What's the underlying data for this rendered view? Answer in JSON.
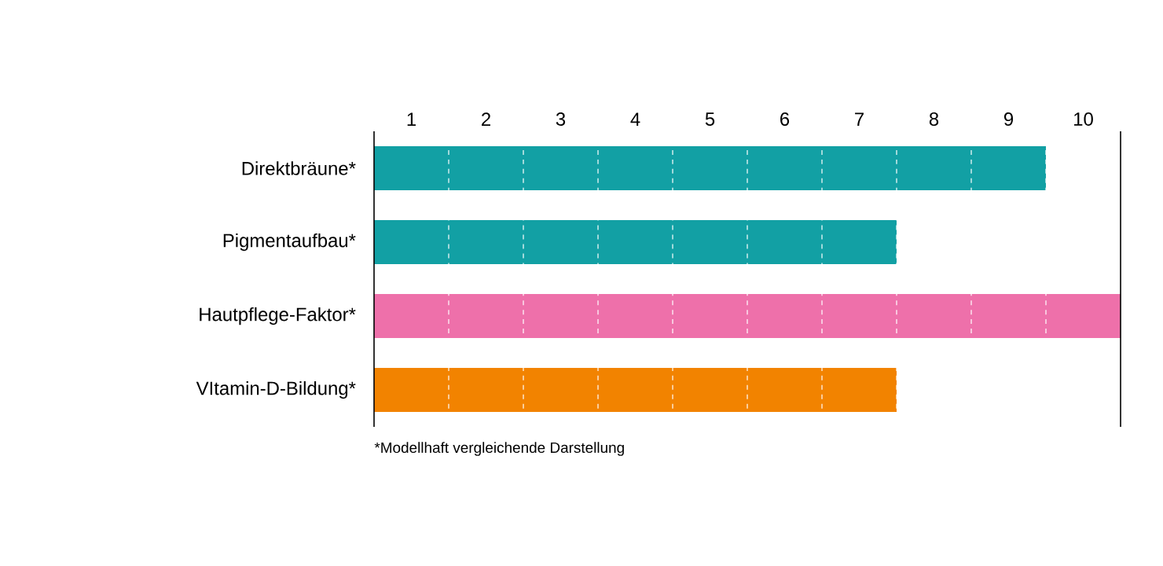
{
  "chart_data": {
    "type": "bar",
    "orientation": "horizontal",
    "categories": [
      "Direktbräune*",
      "Pigmentaufbau*",
      "Hautpflege-Faktor*",
      "VItamin-D-Bildung*"
    ],
    "values": [
      9,
      7,
      10,
      7
    ],
    "colors": [
      "#12a0a4",
      "#12a0a4",
      "#ee70aa",
      "#f28300"
    ],
    "xlim": [
      0,
      10
    ],
    "xticks": [
      {
        "value": 0.5,
        "label": "1"
      },
      {
        "value": 1.5,
        "label": "2"
      },
      {
        "value": 2.5,
        "label": "3"
      },
      {
        "value": 3.5,
        "label": "4"
      },
      {
        "value": 4.5,
        "label": "5"
      },
      {
        "value": 5.5,
        "label": "6"
      },
      {
        "value": 6.5,
        "label": "7"
      },
      {
        "value": 7.5,
        "label": "8"
      },
      {
        "value": 8.5,
        "label": "9"
      },
      {
        "value": 9.5,
        "label": "10"
      },
      {
        "value": 1,
        "label": null
      },
      {
        "value": 2,
        "label": null
      },
      {
        "value": 3,
        "label": null
      },
      {
        "value": 4,
        "label": null
      },
      {
        "value": 5,
        "label": null
      },
      {
        "value": 6,
        "label": null
      },
      {
        "value": 7,
        "label": null
      },
      {
        "value": 8,
        "label": null
      },
      {
        "value": 9,
        "label": null
      }
    ],
    "grid": "x",
    "annotations": [
      "*Modellhaft vergleichende Darstellung"
    ]
  }
}
